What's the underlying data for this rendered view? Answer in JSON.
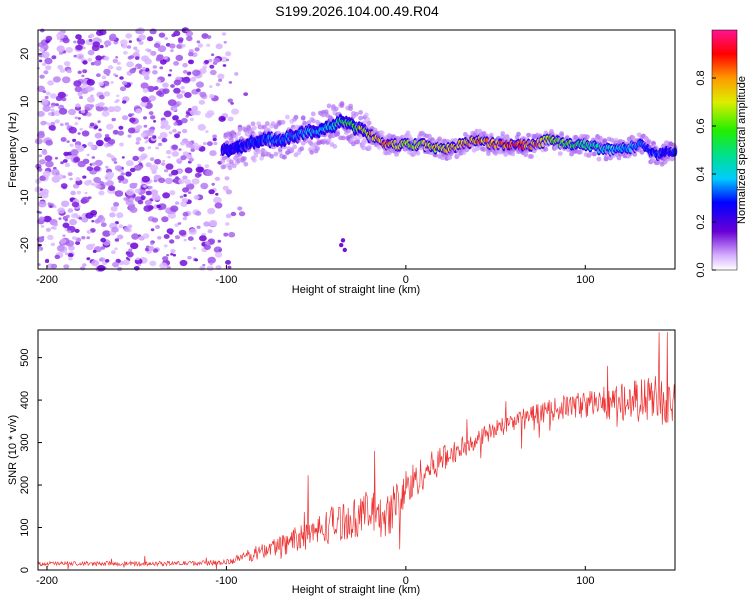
{
  "title": "S199.2026.104.00.49.R04",
  "colors": {
    "signal": "#ee3333",
    "noise_purple": "#8a2be2",
    "axis": "#000000"
  },
  "chart_data": [
    {
      "type": "heatmap",
      "title": "S199.2026.104.00.49.R04",
      "xlabel": "Height of straight line (km)",
      "ylabel": "Frequency (Hz)",
      "xlim": [
        -205,
        150
      ],
      "ylim": [
        -25,
        25
      ],
      "xticks": [
        -200,
        -100,
        0,
        100
      ],
      "xtick_labels": [
        "-200",
        "-100",
        "0",
        "100"
      ],
      "yticks": [
        -20,
        -10,
        0,
        10,
        20
      ],
      "ytick_labels": [
        "-20",
        "-10",
        "0",
        "10",
        "20"
      ],
      "colorbar": {
        "label": "Normalized spectral amplitude",
        "range": [
          0,
          1
        ],
        "ticks": [
          0.0,
          0.2,
          0.4,
          0.6,
          0.8
        ],
        "tick_labels": [
          "0.0",
          "0.2",
          "0.4",
          "0.6",
          "0.8"
        ]
      },
      "ridge": {
        "x": [
          -100,
          -90,
          -80,
          -70,
          -60,
          -50,
          -40,
          -35,
          -30,
          -25,
          -20,
          -15,
          -10,
          -5,
          0,
          10,
          20,
          30,
          40,
          50,
          60,
          70,
          80,
          90,
          100,
          110,
          120,
          130,
          140,
          150
        ],
        "freq": [
          0,
          1,
          2,
          2,
          3,
          4,
          5,
          6,
          5,
          4,
          3,
          2,
          1,
          1,
          1,
          1,
          0,
          1,
          2,
          1,
          1,
          1,
          2,
          1,
          1,
          0,
          0,
          1,
          -1,
          0
        ],
        "amplitude": [
          0.25,
          0.3,
          0.32,
          0.35,
          0.38,
          0.4,
          0.45,
          0.55,
          0.6,
          0.7,
          0.78,
          0.8,
          0.82,
          0.75,
          0.7,
          0.72,
          0.75,
          0.8,
          0.82,
          0.85,
          0.9,
          0.88,
          0.7,
          0.6,
          0.55,
          0.45,
          0.4,
          0.35,
          0.3,
          0.3
        ]
      }
    },
    {
      "type": "line",
      "xlabel": "Height of straight line (km)",
      "ylabel": "SNR (10 * v/v)",
      "xlim": [
        -205,
        150
      ],
      "ylim": [
        0,
        565
      ],
      "xticks": [
        -200,
        -100,
        0,
        100
      ],
      "xtick_labels": [
        "-200",
        "-100",
        "0",
        "100"
      ],
      "yticks": [
        0,
        100,
        200,
        300,
        400,
        500
      ],
      "ytick_labels": [
        "0",
        "100",
        "200",
        "300",
        "400",
        "500"
      ],
      "series": [
        {
          "name": "SNR",
          "x": [
            -205,
            -180,
            -150,
            -120,
            -100,
            -90,
            -80,
            -70,
            -60,
            -50,
            -40,
            -30,
            -20,
            -15,
            -10,
            -5,
            0,
            5,
            10,
            20,
            30,
            40,
            50,
            60,
            70,
            80,
            90,
            100,
            110,
            120,
            130,
            140,
            150
          ],
          "values": [
            15,
            15,
            15,
            16,
            18,
            30,
            45,
            60,
            75,
            90,
            110,
            120,
            140,
            120,
            130,
            160,
            190,
            210,
            230,
            260,
            285,
            310,
            330,
            350,
            365,
            375,
            385,
            390,
            395,
            395,
            400,
            400,
            395
          ],
          "spread": [
            8,
            8,
            8,
            8,
            10,
            20,
            30,
            40,
            50,
            60,
            70,
            70,
            80,
            70,
            80,
            90,
            80,
            70,
            60,
            50,
            40,
            35,
            35,
            35,
            35,
            40,
            45,
            50,
            60,
            70,
            80,
            90,
            80
          ]
        }
      ]
    }
  ]
}
